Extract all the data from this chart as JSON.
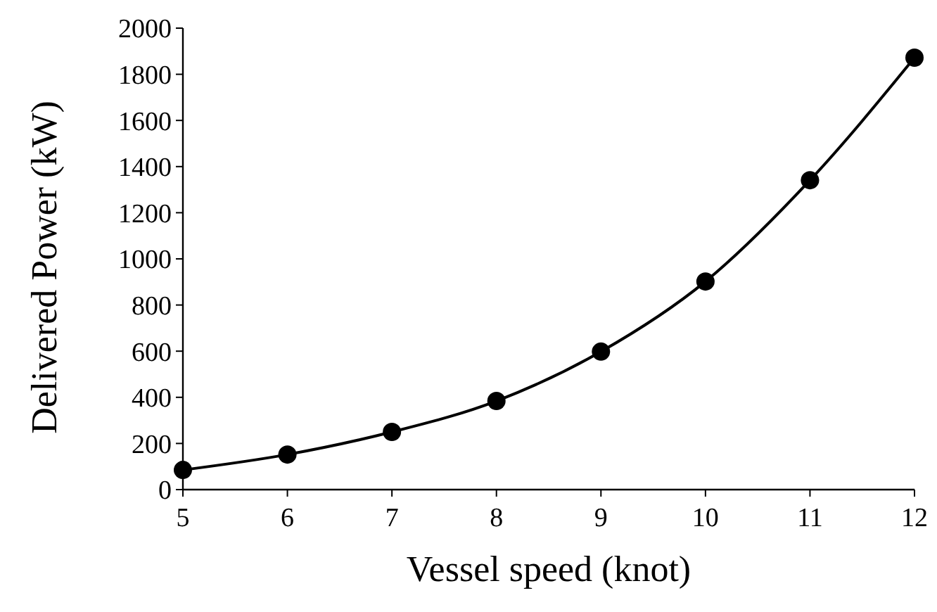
{
  "chart_data": {
    "type": "line",
    "xlabel": "Vessel speed (knot)",
    "ylabel": "Delivered Power (kW)",
    "x": [
      5,
      6,
      7,
      8,
      9,
      10,
      11,
      12
    ],
    "series": [
      {
        "color": "#000000",
        "values": [
          85,
          152,
          250,
          384,
          598,
          902,
          1341,
          1872
        ]
      }
    ],
    "xlim": [
      5,
      12
    ],
    "xticks": [
      5,
      6,
      7,
      8,
      9,
      10,
      11,
      12
    ],
    "ylim": [
      0,
      2000
    ],
    "yticks": [
      0,
      200,
      400,
      600,
      800,
      1000,
      1200,
      1400,
      1600,
      1800,
      2000
    ],
    "grid": false,
    "marker": "circle",
    "line_style": "solid"
  }
}
